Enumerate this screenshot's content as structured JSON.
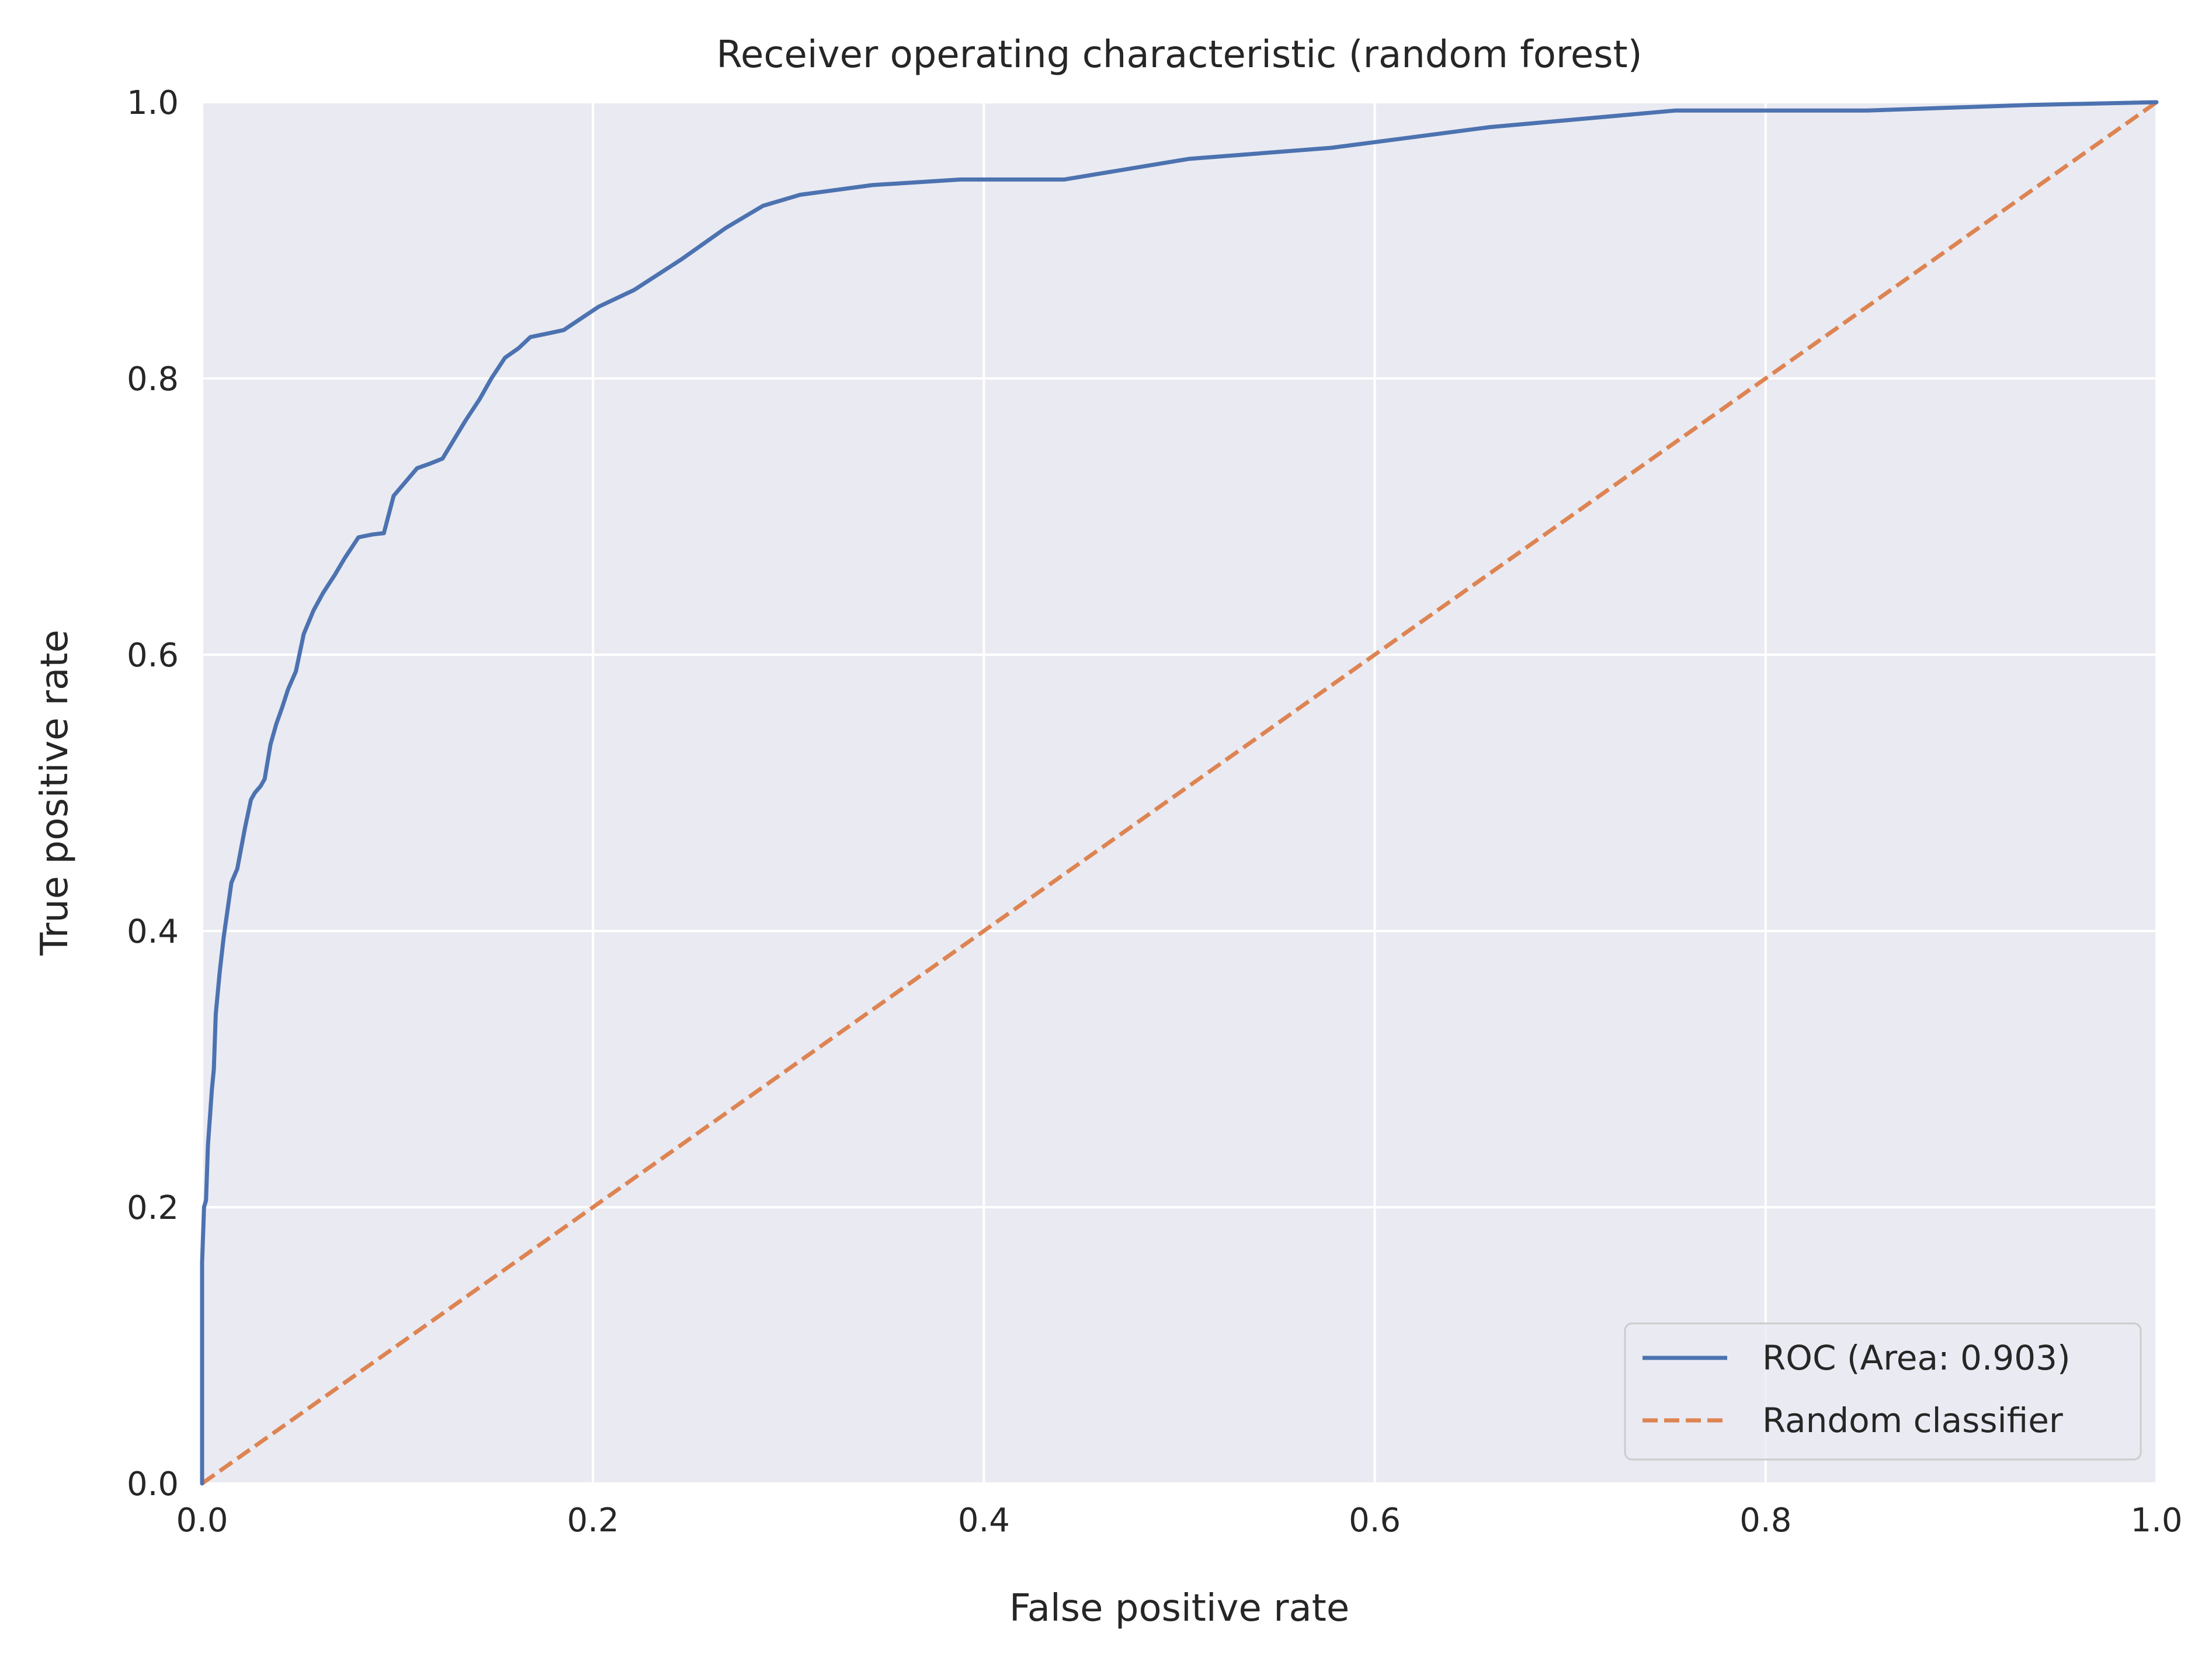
{
  "chart_data": {
    "type": "line",
    "title": "Receiver operating characteristic (random forest)",
    "xlabel": "False positive rate",
    "ylabel": "True positive rate",
    "xlim": [
      0.0,
      1.0
    ],
    "ylim": [
      0.0,
      1.0
    ],
    "x_ticks": [
      "0.0",
      "0.2",
      "0.4",
      "0.6",
      "0.8",
      "1.0"
    ],
    "y_ticks": [
      "0.0",
      "0.2",
      "0.4",
      "0.6",
      "0.8",
      "1.0"
    ],
    "grid": true,
    "legend_position": "lower-right",
    "series": [
      {
        "name": "ROC (Area: 0.903)",
        "style": "solid",
        "color": "#4c72b0",
        "x": [
          0.0,
          0.0,
          0.001,
          0.002,
          0.003,
          0.004,
          0.005,
          0.006,
          0.007,
          0.009,
          0.011,
          0.013,
          0.015,
          0.018,
          0.02,
          0.022,
          0.025,
          0.027,
          0.03,
          0.032,
          0.035,
          0.038,
          0.041,
          0.044,
          0.048,
          0.052,
          0.057,
          0.062,
          0.068,
          0.073,
          0.08,
          0.087,
          0.093,
          0.098,
          0.104,
          0.11,
          0.116,
          0.123,
          0.129,
          0.135,
          0.142,
          0.148,
          0.155,
          0.162,
          0.168,
          0.175,
          0.185,
          0.203,
          0.221,
          0.245,
          0.268,
          0.287,
          0.306,
          0.343,
          0.388,
          0.441,
          0.505,
          0.578,
          0.659,
          0.754,
          0.852,
          0.935,
          1.0
        ],
        "y": [
          0.0,
          0.16,
          0.2,
          0.205,
          0.245,
          0.265,
          0.285,
          0.3,
          0.34,
          0.37,
          0.395,
          0.415,
          0.435,
          0.445,
          0.46,
          0.475,
          0.495,
          0.5,
          0.505,
          0.51,
          0.535,
          0.55,
          0.562,
          0.575,
          0.588,
          0.615,
          0.632,
          0.645,
          0.658,
          0.67,
          0.685,
          0.687,
          0.688,
          0.715,
          0.725,
          0.735,
          0.738,
          0.742,
          0.756,
          0.77,
          0.785,
          0.8,
          0.815,
          0.822,
          0.83,
          0.832,
          0.835,
          0.852,
          0.864,
          0.886,
          0.909,
          0.925,
          0.933,
          0.94,
          0.944,
          0.944,
          0.959,
          0.967,
          0.982,
          0.994,
          0.994,
          0.998,
          1.0
        ]
      },
      {
        "name": "Random classifier",
        "style": "dashed",
        "color": "#dd8452",
        "x": [
          0.0,
          1.0
        ],
        "y": [
          0.0,
          1.0
        ]
      }
    ]
  }
}
